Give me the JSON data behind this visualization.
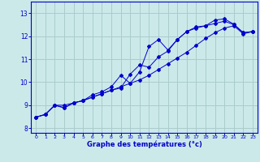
{
  "background_color": "#cce9e9",
  "grid_color": "#aacccc",
  "line_color": "#0000cc",
  "xlabel": "Graphe des températures (°c)",
  "xlim": [
    -0.5,
    23.5
  ],
  "ylim": [
    7.8,
    13.5
  ],
  "yticks": [
    8,
    9,
    10,
    11,
    12,
    13
  ],
  "xticks": [
    0,
    1,
    2,
    3,
    4,
    5,
    6,
    7,
    8,
    9,
    10,
    11,
    12,
    13,
    14,
    15,
    16,
    17,
    18,
    19,
    20,
    21,
    22,
    23
  ],
  "line1_x": [
    0,
    1,
    2,
    3,
    4,
    5,
    6,
    7,
    8,
    9,
    10,
    11,
    12,
    13,
    14,
    15,
    16,
    17,
    18,
    19,
    20,
    21,
    22,
    23
  ],
  "line1_y": [
    8.48,
    8.6,
    9.0,
    9.0,
    9.1,
    9.2,
    9.35,
    9.5,
    9.65,
    9.8,
    9.95,
    10.1,
    10.3,
    10.55,
    10.8,
    11.05,
    11.3,
    11.6,
    11.9,
    12.15,
    12.35,
    12.45,
    12.1,
    12.2
  ],
  "line2_x": [
    0,
    1,
    2,
    3,
    4,
    5,
    6,
    7,
    8,
    9,
    10,
    11,
    12,
    13,
    14,
    15,
    16,
    17,
    18,
    19,
    20,
    21,
    22,
    23
  ],
  "line2_y": [
    8.48,
    8.6,
    9.0,
    8.88,
    9.1,
    9.2,
    9.35,
    9.5,
    9.65,
    9.75,
    10.35,
    10.75,
    10.65,
    11.1,
    11.35,
    11.85,
    12.2,
    12.35,
    12.45,
    12.55,
    12.65,
    12.5,
    12.15,
    12.2
  ],
  "line3_x": [
    0,
    1,
    2,
    3,
    4,
    5,
    6,
    7,
    8,
    9,
    10,
    11,
    12,
    13,
    14,
    15,
    16,
    17,
    18,
    19,
    20,
    21,
    22,
    23
  ],
  "line3_y": [
    8.48,
    8.6,
    9.0,
    8.9,
    9.1,
    9.2,
    9.45,
    9.58,
    9.8,
    10.3,
    9.95,
    10.45,
    11.55,
    11.85,
    11.4,
    11.85,
    12.2,
    12.4,
    12.45,
    12.7,
    12.75,
    12.52,
    12.15,
    12.2
  ]
}
